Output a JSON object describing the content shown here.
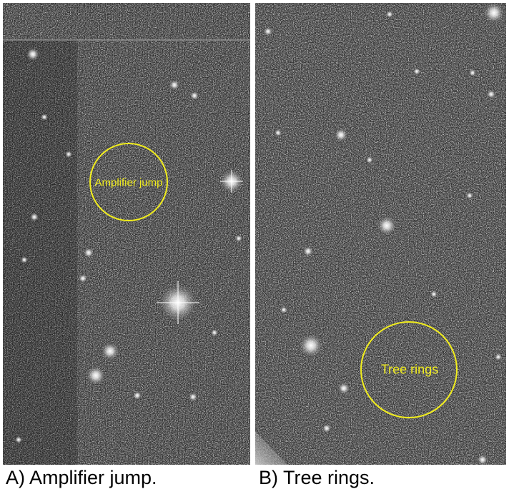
{
  "panels": [
    {
      "caption": "A) Amplifier jump.",
      "annotation": "Amplifier jump",
      "annotation_color": "#f2ee1d"
    },
    {
      "caption": "B) Tree rings.",
      "annotation": "Tree rings",
      "annotation_color": "#f2ee1d"
    }
  ]
}
